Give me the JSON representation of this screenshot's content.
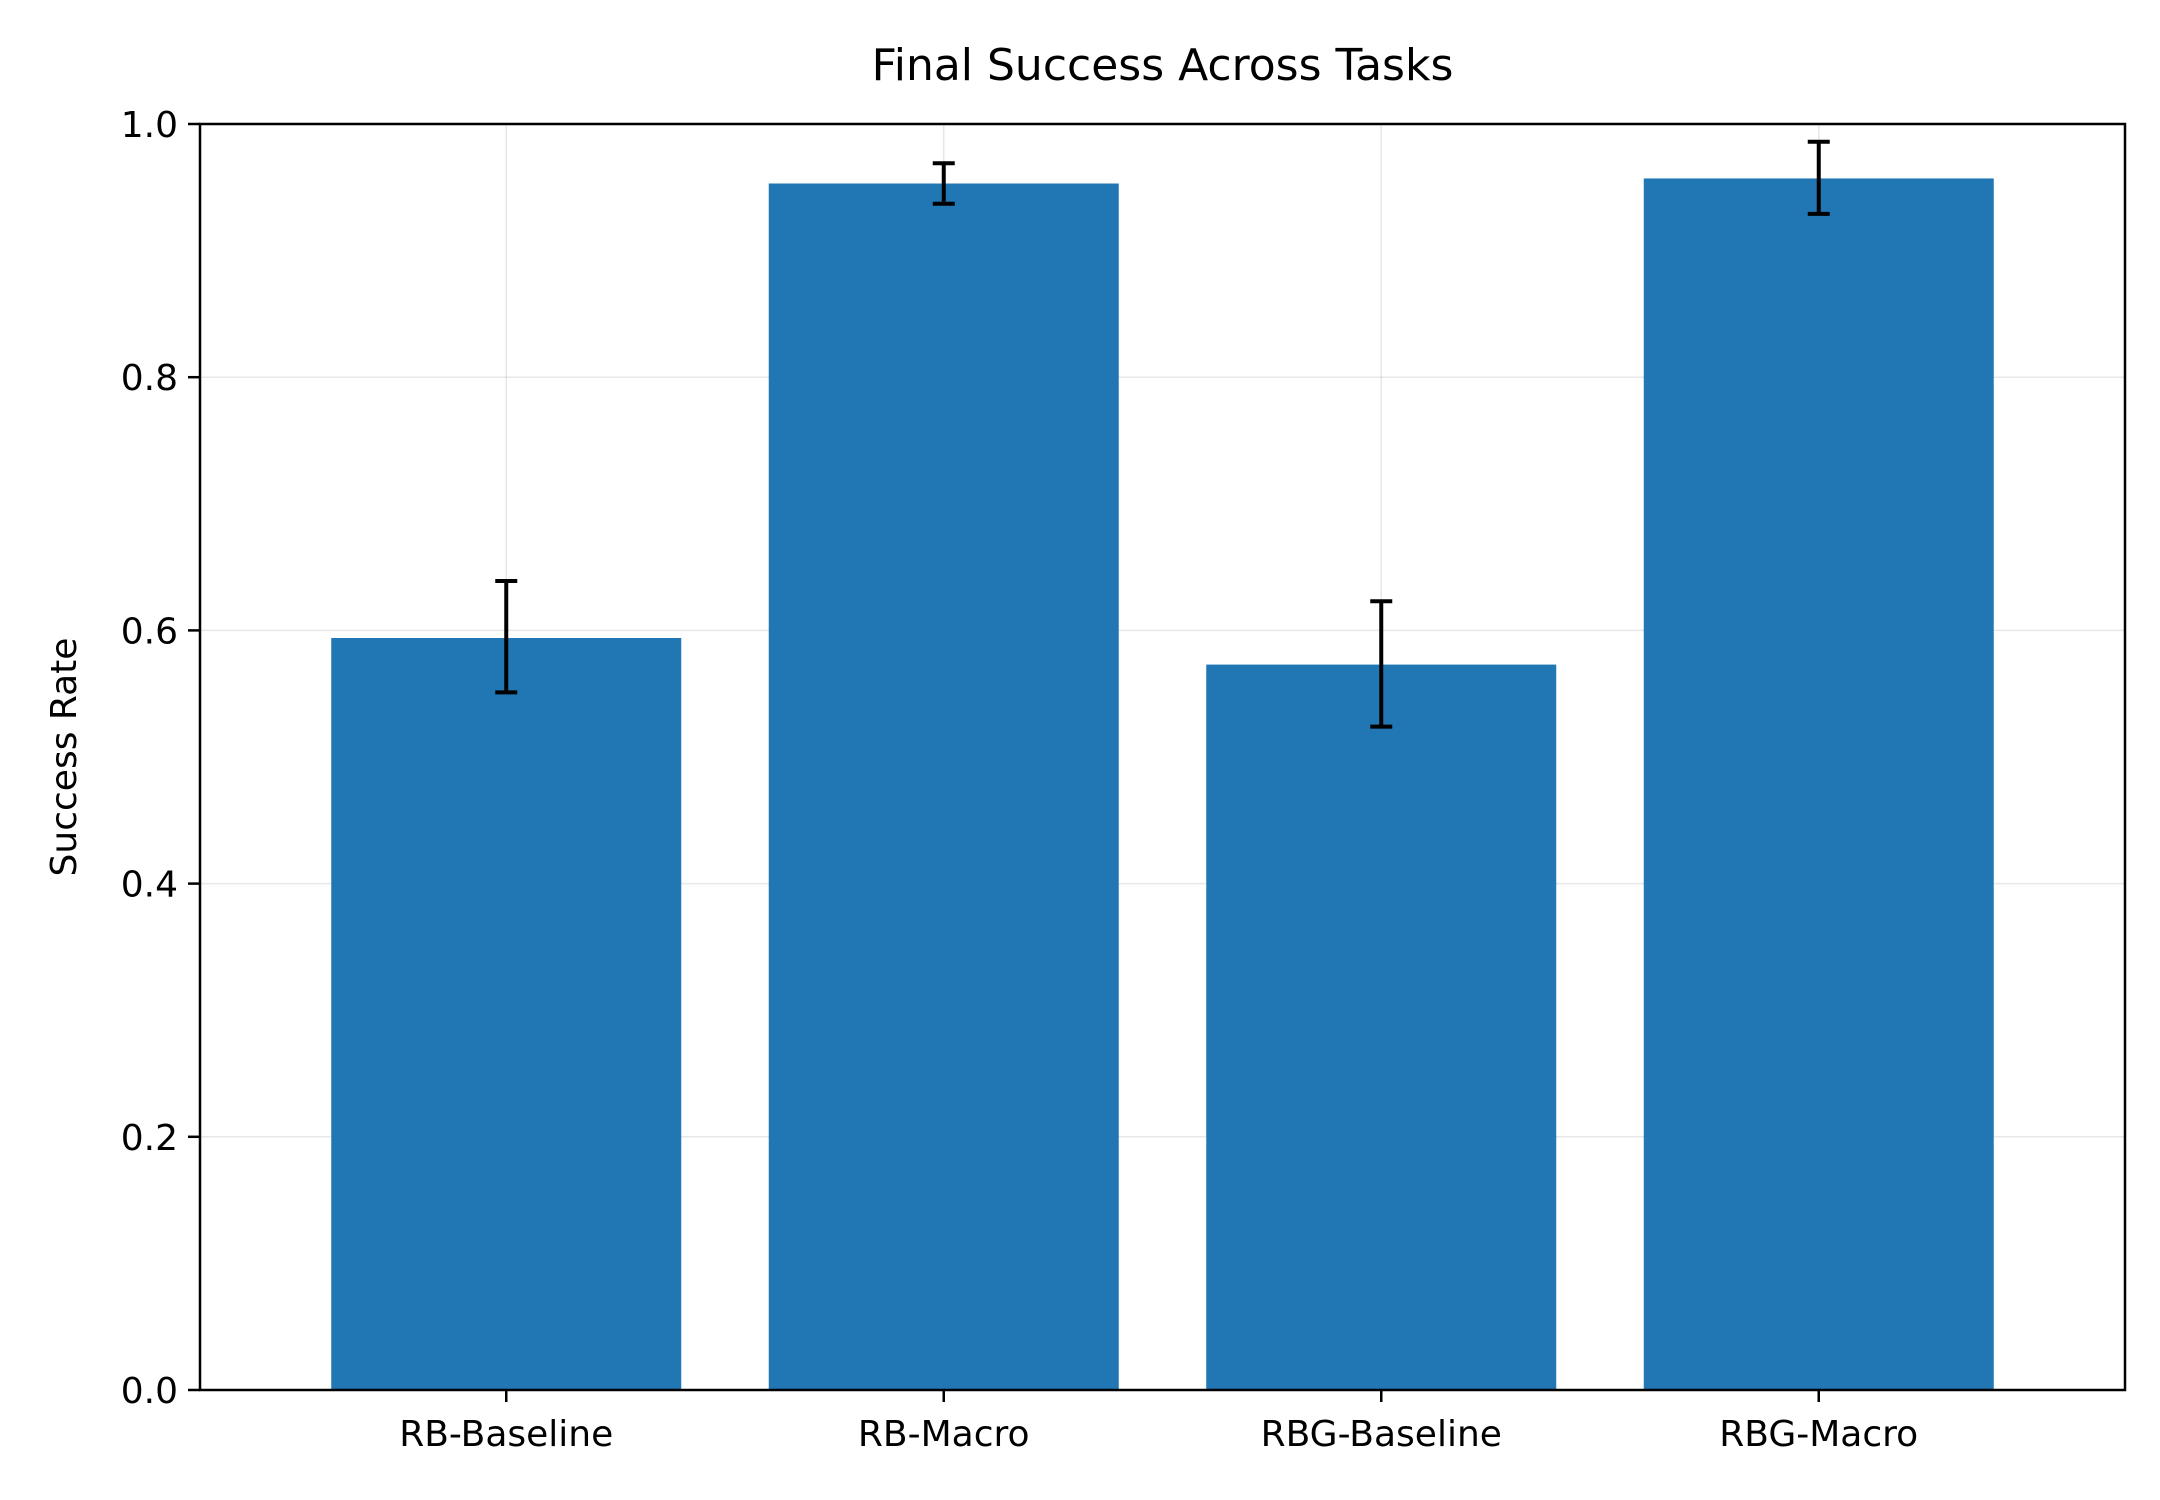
{
  "chart_data": {
    "type": "bar",
    "title": "Final Success Across Tasks",
    "xlabel": "",
    "ylabel": "Success Rate",
    "categories": [
      "RB-Baseline",
      "RB-Macro",
      "RBG-Baseline",
      "RBG-Macro"
    ],
    "values": [
      0.594,
      0.953,
      0.573,
      0.957
    ],
    "error_low": [
      0.551,
      0.937,
      0.524,
      0.929
    ],
    "error_high": [
      0.639,
      0.969,
      0.623,
      0.986
    ],
    "ylim": [
      0.0,
      1.0
    ],
    "yticks": [
      "0.0",
      "0.2",
      "0.4",
      "0.6",
      "0.8",
      "1.0"
    ],
    "grid": true,
    "colors": {
      "bar": "#2077b4",
      "error_bar": "#000000"
    }
  }
}
